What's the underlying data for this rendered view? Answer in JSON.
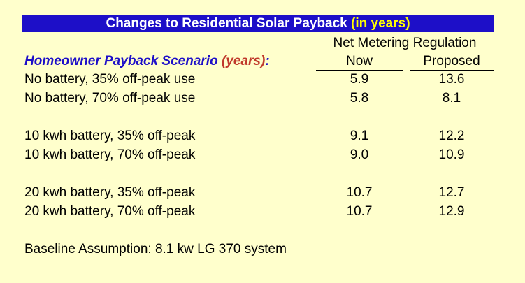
{
  "colors": {
    "background": "#ffffcc",
    "title_bar": "#1d0fc8",
    "title_text": "#ffffff",
    "title_accent": "#ffff00",
    "scenario_header": "#1d0fc8",
    "scenario_years": "#c0392b"
  },
  "chart_data": {
    "type": "table",
    "title": "Changes to Residential Solar Payback",
    "title_accent": "(in years)",
    "group_header": "Net Metering Regulation",
    "row_header": "Homeowner Payback Scenario",
    "row_header_accent": "(years)",
    "row_header_colon": ":",
    "columns": [
      "Now",
      "Proposed"
    ],
    "rows": [
      {
        "label": "No battery, 35% off-peak use",
        "now": "5.9",
        "proposed": "13.6"
      },
      {
        "label": "No battery, 70% off-peak use",
        "now": "5.8",
        "proposed": "8.1"
      },
      {
        "label": "10 kwh battery, 35% off-peak",
        "now": "9.1",
        "proposed": "12.2"
      },
      {
        "label": "10 kwh battery, 70% off-peak",
        "now": "9.0",
        "proposed": "10.9"
      },
      {
        "label": "20 kwh battery, 35% off-peak",
        "now": "10.7",
        "proposed": "12.7"
      },
      {
        "label": "20 kwh battery, 70% off-peak",
        "now": "10.7",
        "proposed": "12.9"
      }
    ],
    "footnote": "Baseline Assumption: 8.1 kw LG 370 system"
  }
}
